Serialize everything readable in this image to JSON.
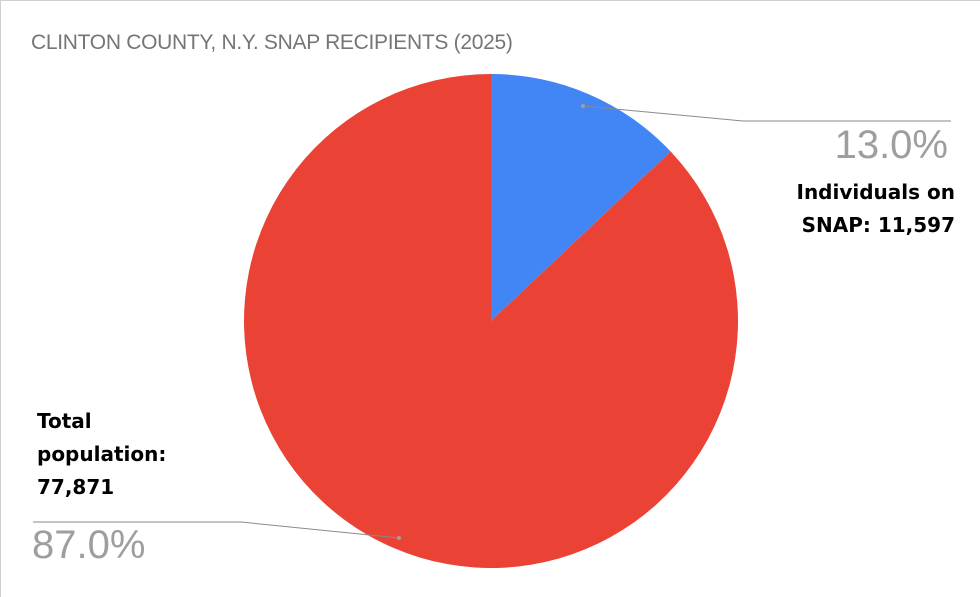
{
  "chart_data": {
    "type": "pie",
    "title": "CLINTON COUNTY, N.Y. SNAP RECIPIENTS (2025)",
    "slices": [
      {
        "label_lines": [
          "Individuals on",
          "SNAP: 11,597"
        ],
        "value": 11597,
        "percent_label": "13.0%",
        "color": "#4285F4"
      },
      {
        "label_lines": [
          "Total",
          "population:",
          "77,871"
        ],
        "value": 77871,
        "percent_label": "87.0%",
        "color": "#EA4335"
      }
    ],
    "start_angle": "12 o'clock",
    "direction": "clockwise",
    "legend": "none"
  }
}
